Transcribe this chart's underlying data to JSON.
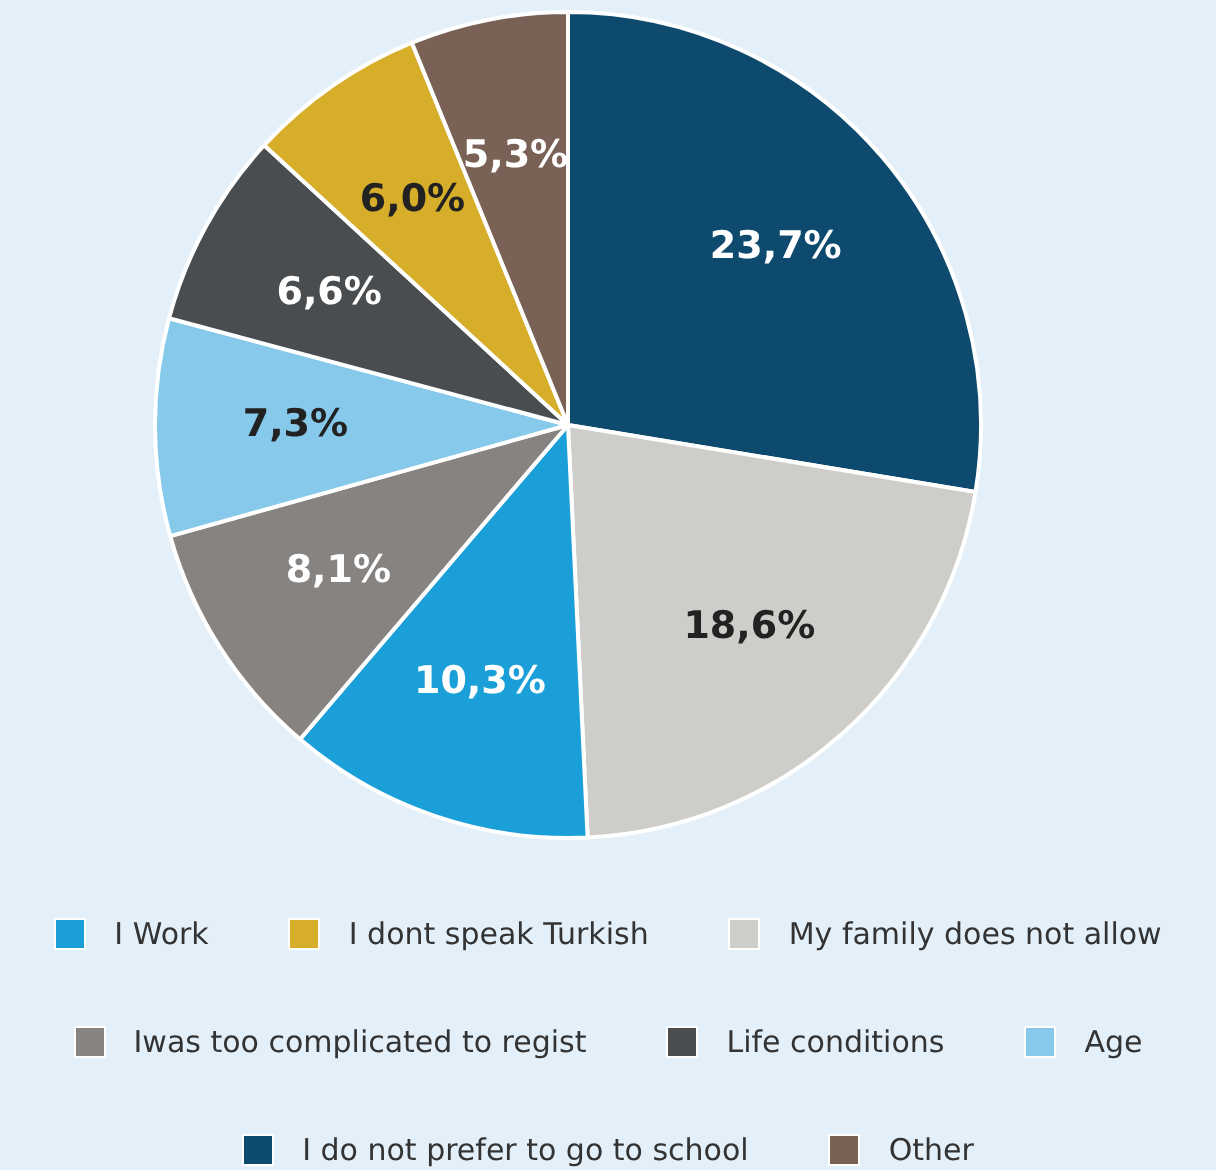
{
  "chart_data": {
    "type": "pie",
    "categories": [
      "I do not prefer to go to school",
      "My family does not allow",
      "I Work",
      "Iwas too complicated to regist",
      "Age",
      "Life conditions",
      "I dont speak Turkish",
      "Other"
    ],
    "values": [
      23.7,
      18.6,
      10.3,
      8.1,
      7.3,
      6.6,
      6.0,
      5.3
    ],
    "colors": [
      "#0d4a6e",
      "#cfcdc9",
      "#1a9fd9",
      "#868381",
      "#86c9ea",
      "#4a4d50",
      "#d6ae2a",
      "#7a6155"
    ],
    "value_labels": [
      "23,7%",
      "18,6%",
      "10,3%",
      "8,1%",
      "7,3%",
      "6,6%",
      "6,0%",
      "5,3%"
    ],
    "legend": "bottom"
  }
}
